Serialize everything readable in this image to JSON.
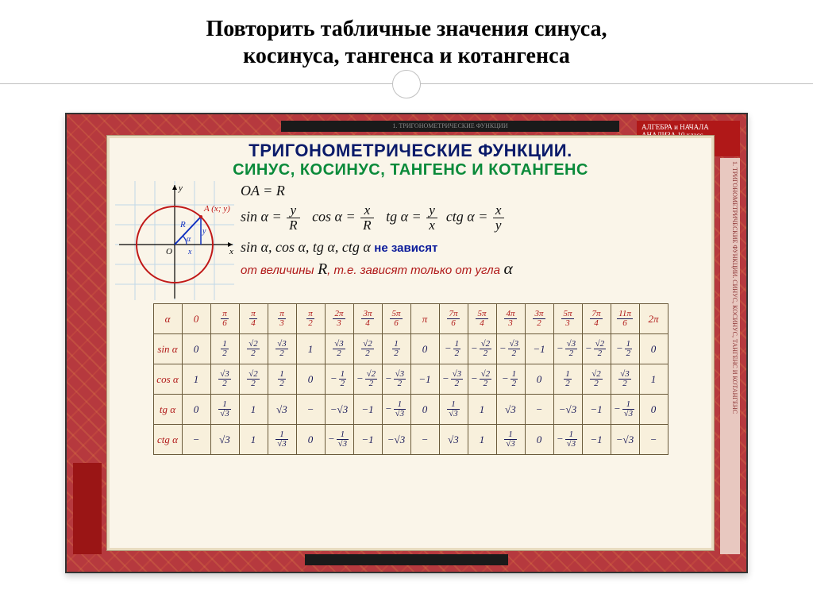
{
  "slide": {
    "title_line1": "Повторить табличные значения синуса,",
    "title_line2": "косинуса, тангенса и котангенса",
    "bg_color": "#ffffff",
    "divider_color": "#c0c0c0"
  },
  "chart": {
    "frame_bg": "#b6393e",
    "inner_bg": "#faf5e9",
    "side_tab_text": "АЛГЕБРА и НАЧАЛА АНАЛИЗА\n10 класс",
    "side_band_text": "1. ТРИГОНОМЕТРИЧЕСКИЕ ФУНКЦИИ. СИНУС, КОСИНУС, ТАНГЕНС И КОТАНГЕНС",
    "top_strip_text": "1. ТРИГОНОМЕТРИЧЕСКИЕ ФУНКЦИИ",
    "heading1": "ТРИГОНОМЕТРИЧЕСКИЕ ФУНКЦИИ.",
    "heading2": "СИНУС, КОСИНУС, ТАНГЕНС И КОТАНГЕНС",
    "heading1_color": "#0a1a6a",
    "heading2_color": "#0a8a3a",
    "formulas": {
      "OA_eq": "OA = R",
      "sin": "sin α =",
      "cos": "cos α =",
      "tg": "tg α =",
      "ctg": "ctg α =",
      "sin_frac": {
        "n": "y",
        "d": "R"
      },
      "cos_frac": {
        "n": "x",
        "d": "R"
      },
      "tg_frac": {
        "n": "y",
        "d": "x"
      },
      "ctg_frac": {
        "n": "x",
        "d": "y"
      },
      "list": "sin α, cos α, tg α, ctg α",
      "note1": "не зависят",
      "note2_a": "от величины",
      "note2_R": "R",
      "note2_b": ", т.е. зависят только от угла",
      "note2_alpha": "α"
    },
    "circle": {
      "radius": 48,
      "point_label": "A (x; y)",
      "axis_labels": {
        "x": "x",
        "y": "y",
        "o": "O",
        "r": "R",
        "a": "α",
        "px": "x",
        "py": "y"
      },
      "stroke_color": "#c01818",
      "radius_color": "#1030c0",
      "grid_color": "#c0d8e8"
    },
    "table": {
      "row_label_color": "#b01818",
      "cell_color": "#1a1a5a",
      "border_color": "#6a5a3a",
      "angles": [
        {
          "t": "0"
        },
        {
          "n": "π",
          "d": "6"
        },
        {
          "n": "π",
          "d": "4"
        },
        {
          "n": "π",
          "d": "3"
        },
        {
          "n": "π",
          "d": "2"
        },
        {
          "n": "2π",
          "d": "3"
        },
        {
          "n": "3π",
          "d": "4"
        },
        {
          "n": "5π",
          "d": "6"
        },
        {
          "t": "π"
        },
        {
          "n": "7π",
          "d": "6"
        },
        {
          "n": "5π",
          "d": "4"
        },
        {
          "n": "4π",
          "d": "3"
        },
        {
          "n": "3π",
          "d": "2"
        },
        {
          "n": "5π",
          "d": "3"
        },
        {
          "n": "7π",
          "d": "4"
        },
        {
          "n": "11π",
          "d": "6"
        },
        {
          "t": "2π"
        }
      ],
      "rows": [
        {
          "label": "sin α",
          "cells": [
            {
              "t": "0"
            },
            {
              "n": "1",
              "d": "2"
            },
            {
              "n": "√2",
              "d": "2"
            },
            {
              "n": "√3",
              "d": "2"
            },
            {
              "t": "1"
            },
            {
              "n": "√3",
              "d": "2"
            },
            {
              "n": "√2",
              "d": "2"
            },
            {
              "n": "1",
              "d": "2"
            },
            {
              "t": "0"
            },
            {
              "neg": true,
              "n": "1",
              "d": "2"
            },
            {
              "neg": true,
              "n": "√2",
              "d": "2"
            },
            {
              "neg": true,
              "n": "√3",
              "d": "2"
            },
            {
              "t": "−1"
            },
            {
              "neg": true,
              "n": "√3",
              "d": "2"
            },
            {
              "neg": true,
              "n": "√2",
              "d": "2"
            },
            {
              "neg": true,
              "n": "1",
              "d": "2"
            },
            {
              "t": "0"
            }
          ]
        },
        {
          "label": "cos α",
          "cells": [
            {
              "t": "1"
            },
            {
              "n": "√3",
              "d": "2"
            },
            {
              "n": "√2",
              "d": "2"
            },
            {
              "n": "1",
              "d": "2"
            },
            {
              "t": "0"
            },
            {
              "neg": true,
              "n": "1",
              "d": "2"
            },
            {
              "neg": true,
              "n": "√2",
              "d": "2"
            },
            {
              "neg": true,
              "n": "√3",
              "d": "2"
            },
            {
              "t": "−1"
            },
            {
              "neg": true,
              "n": "√3",
              "d": "2"
            },
            {
              "neg": true,
              "n": "√2",
              "d": "2"
            },
            {
              "neg": true,
              "n": "1",
              "d": "2"
            },
            {
              "t": "0"
            },
            {
              "n": "1",
              "d": "2"
            },
            {
              "n": "√2",
              "d": "2"
            },
            {
              "n": "√3",
              "d": "2"
            },
            {
              "t": "1"
            }
          ]
        },
        {
          "label": "tg α",
          "cells": [
            {
              "t": "0"
            },
            {
              "n": "1",
              "d": "√3"
            },
            {
              "t": "1"
            },
            {
              "t": "√3"
            },
            {
              "t": "−"
            },
            {
              "t": "−√3"
            },
            {
              "t": "−1"
            },
            {
              "neg": true,
              "n": "1",
              "d": "√3"
            },
            {
              "t": "0"
            },
            {
              "n": "1",
              "d": "√3"
            },
            {
              "t": "1"
            },
            {
              "t": "√3"
            },
            {
              "t": "−"
            },
            {
              "t": "−√3"
            },
            {
              "t": "−1"
            },
            {
              "neg": true,
              "n": "1",
              "d": "√3"
            },
            {
              "t": "0"
            }
          ]
        },
        {
          "label": "ctg α",
          "cells": [
            {
              "t": "−"
            },
            {
              "t": "√3"
            },
            {
              "t": "1"
            },
            {
              "n": "1",
              "d": "√3"
            },
            {
              "t": "0"
            },
            {
              "neg": true,
              "n": "1",
              "d": "√3"
            },
            {
              "t": "−1"
            },
            {
              "t": "−√3"
            },
            {
              "t": "−"
            },
            {
              "t": "√3"
            },
            {
              "t": "1"
            },
            {
              "n": "1",
              "d": "√3"
            },
            {
              "t": "0"
            },
            {
              "neg": true,
              "n": "1",
              "d": "√3"
            },
            {
              "t": "−1"
            },
            {
              "t": "−√3"
            },
            {
              "t": "−"
            }
          ]
        }
      ]
    }
  }
}
